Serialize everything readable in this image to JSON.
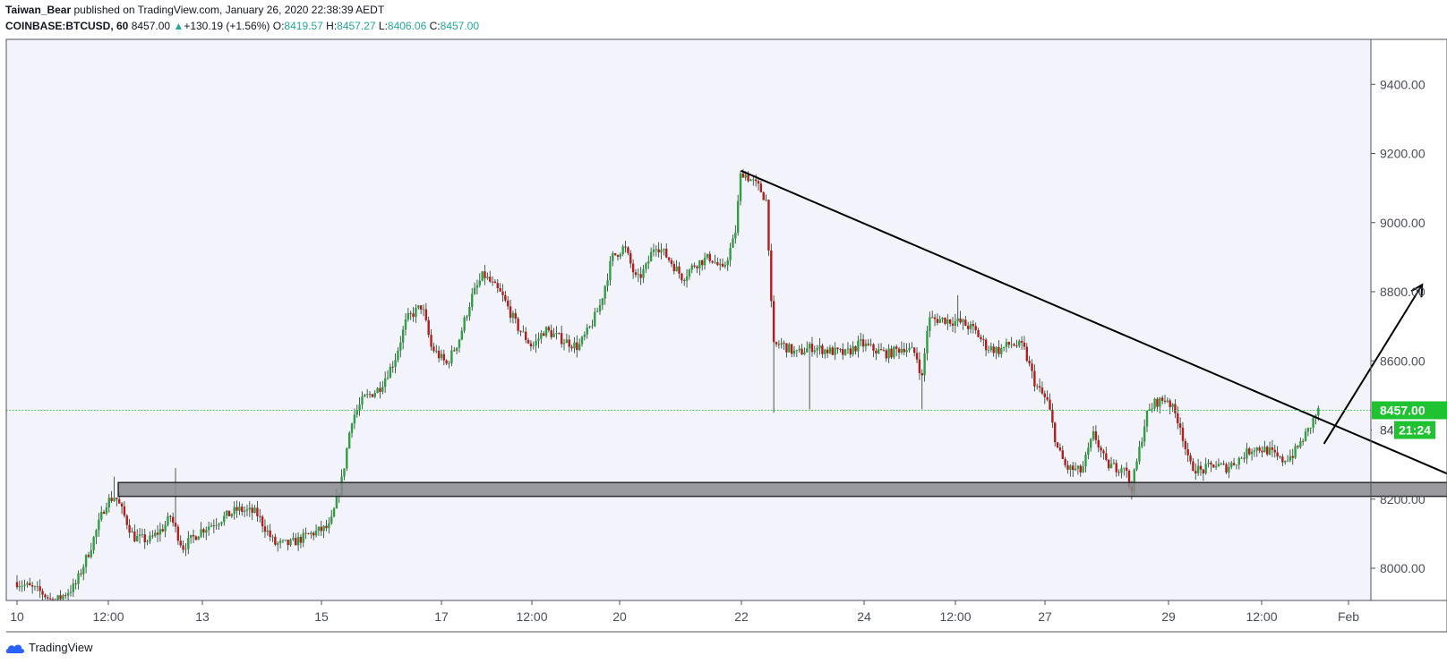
{
  "header": {
    "author": "Taiwan_Bear",
    "published_text": " published on TradingView.com, January 26, 2020 22:38:39 AEDT",
    "symbol": "COINBASE:BTCUSD, 60",
    "last": "8457.00",
    "change_arrow": "▲",
    "change": "+130.19 (+1.56%)",
    "o_label": "O:",
    "o": "8419.57",
    "h_label": "H:",
    "h": "8457.27",
    "l_label": "L:",
    "l": "8406.06",
    "c_label": "C:",
    "c": "8457.00"
  },
  "footer": {
    "brand": "TradingView",
    "logo_icon": "tradingview-cloud-icon"
  },
  "colors": {
    "up": "#2ea042",
    "down": "#b71c1c",
    "bg": "#f2f3fb",
    "price_line": "#2ecc40"
  },
  "chart_data": {
    "type": "candlestick",
    "symbol": "COINBASE:BTCUSD",
    "interval": "60",
    "x_ticks": [
      "10",
      "12:00",
      "13",
      "15",
      "17",
      "12:00",
      "20",
      "22",
      "24",
      "12:00",
      "27",
      "29",
      "12:00",
      "Feb"
    ],
    "y_ticks": [
      "8000.00",
      "8200.00",
      "8400.00",
      "8600.00",
      "8800.00",
      "9000.00",
      "9200.00",
      "9400.00"
    ],
    "ylim": [
      7905,
      9495
    ],
    "xlim_days": [
      10.4,
      32.1
    ],
    "last_price": "8457.00",
    "countdown": "21:24",
    "price_path": [
      [
        10.4,
        7960
      ],
      [
        10.8,
        7930
      ],
      [
        11.0,
        7900
      ],
      [
        11.35,
        7950
      ],
      [
        11.6,
        8060
      ],
      [
        11.85,
        8190
      ],
      [
        12.0,
        8210
      ],
      [
        12.3,
        8090
      ],
      [
        12.55,
        8080
      ],
      [
        12.8,
        8120
      ],
      [
        12.9,
        8150
      ],
      [
        13.1,
        8060
      ],
      [
        13.4,
        8110
      ],
      [
        13.7,
        8140
      ],
      [
        14.0,
        8170
      ],
      [
        14.3,
        8160
      ],
      [
        14.6,
        8070
      ],
      [
        14.85,
        8070
      ],
      [
        15.2,
        8100
      ],
      [
        15.5,
        8120
      ],
      [
        15.7,
        8260
      ],
      [
        15.85,
        8430
      ],
      [
        16.05,
        8490
      ],
      [
        16.3,
        8520
      ],
      [
        16.55,
        8600
      ],
      [
        16.75,
        8720
      ],
      [
        17.0,
        8760
      ],
      [
        17.15,
        8640
      ],
      [
        17.4,
        8590
      ],
      [
        17.6,
        8660
      ],
      [
        17.8,
        8780
      ],
      [
        18.0,
        8850
      ],
      [
        18.3,
        8790
      ],
      [
        18.55,
        8700
      ],
      [
        18.8,
        8640
      ],
      [
        19.0,
        8690
      ],
      [
        19.3,
        8660
      ],
      [
        19.55,
        8640
      ],
      [
        19.75,
        8700
      ],
      [
        19.9,
        8760
      ],
      [
        20.1,
        8900
      ],
      [
        20.3,
        8930
      ],
      [
        20.5,
        8830
      ],
      [
        20.65,
        8870
      ],
      [
        20.8,
        8940
      ],
      [
        21.0,
        8900
      ],
      [
        21.25,
        8840
      ],
      [
        21.45,
        8880
      ],
      [
        21.7,
        8900
      ],
      [
        21.9,
        8860
      ],
      [
        22.1,
        8960
      ],
      [
        22.2,
        9150
      ],
      [
        22.32,
        9130
      ],
      [
        22.5,
        9100
      ],
      [
        22.62,
        9060
      ],
      [
        22.72,
        8640
      ],
      [
        22.85,
        8650
      ],
      [
        23.1,
        8620
      ],
      [
        23.35,
        8640
      ],
      [
        23.6,
        8630
      ],
      [
        23.9,
        8620
      ],
      [
        24.15,
        8650
      ],
      [
        24.4,
        8630
      ],
      [
        24.6,
        8620
      ],
      [
        24.85,
        8640
      ],
      [
        25.05,
        8620
      ],
      [
        25.15,
        8550
      ],
      [
        25.25,
        8720
      ],
      [
        25.5,
        8720
      ],
      [
        25.8,
        8710
      ],
      [
        26.0,
        8690
      ],
      [
        26.2,
        8640
      ],
      [
        26.4,
        8630
      ],
      [
        26.6,
        8650
      ],
      [
        26.8,
        8640
      ],
      [
        27.0,
        8530
      ],
      [
        27.2,
        8480
      ],
      [
        27.35,
        8350
      ],
      [
        27.5,
        8290
      ],
      [
        27.75,
        8280
      ],
      [
        27.95,
        8390
      ],
      [
        28.15,
        8300
      ],
      [
        28.35,
        8290
      ],
      [
        28.45,
        8300
      ],
      [
        28.55,
        8220
      ],
      [
        28.7,
        8350
      ],
      [
        28.8,
        8440
      ],
      [
        28.95,
        8480
      ],
      [
        29.15,
        8490
      ],
      [
        29.35,
        8420
      ],
      [
        29.5,
        8300
      ],
      [
        29.7,
        8280
      ],
      [
        29.9,
        8300
      ],
      [
        30.1,
        8290
      ],
      [
        30.35,
        8320
      ],
      [
        30.55,
        8350
      ],
      [
        30.8,
        8340
      ],
      [
        31.0,
        8310
      ],
      [
        31.2,
        8330
      ],
      [
        31.45,
        8400
      ],
      [
        31.55,
        8440
      ],
      [
        31.62,
        8457
      ]
    ],
    "annotations": {
      "support_zone": {
        "x": [
          12.05,
          39.7
        ],
        "y": [
          8208,
          8248
        ]
      },
      "trendline": {
        "from": [
          22.2,
          9150
        ],
        "to": [
          35.2,
          8160
        ]
      },
      "arrow": {
        "from": [
          31.7,
          8360
        ],
        "to": [
          33.3,
          8820
        ]
      }
    }
  }
}
